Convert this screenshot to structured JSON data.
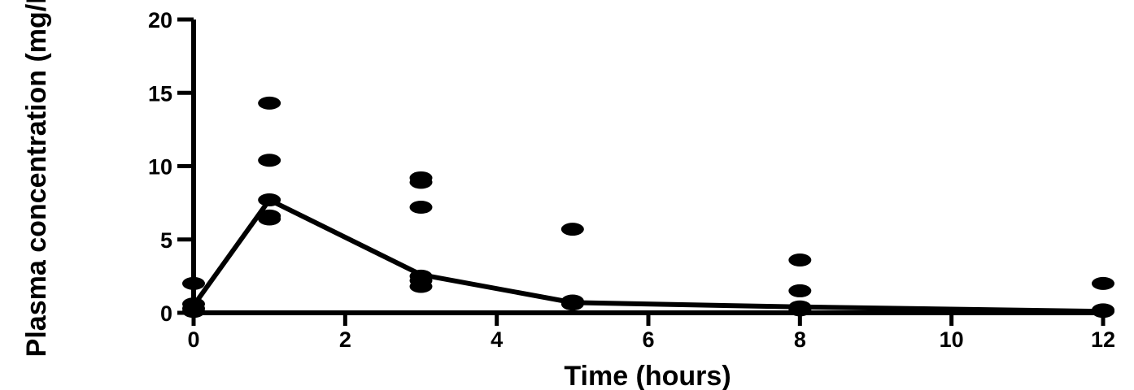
{
  "chart_data": {
    "type": "scatter",
    "title": "",
    "xlabel": "Time (hours)",
    "ylabel": "Plasma concentration (mg/L)",
    "xlim": [
      0,
      12
    ],
    "ylim": [
      0,
      20
    ],
    "xticks": [
      0,
      2,
      4,
      6,
      8,
      10,
      12
    ],
    "yticks": [
      0,
      5,
      10,
      15,
      20
    ],
    "grid": false,
    "series": [
      {
        "type": "scatter",
        "points": [
          [
            0,
            2.0
          ],
          [
            0,
            0.6
          ],
          [
            0,
            0.3
          ],
          [
            0,
            0.1
          ],
          [
            1,
            14.3
          ],
          [
            1,
            10.4
          ],
          [
            1,
            7.7
          ],
          [
            1,
            6.6
          ],
          [
            1,
            6.4
          ],
          [
            3,
            9.2
          ],
          [
            3,
            8.9
          ],
          [
            3,
            7.2
          ],
          [
            3,
            2.5
          ],
          [
            3,
            2.2
          ],
          [
            3,
            1.8
          ],
          [
            5,
            5.7
          ],
          [
            5,
            0.8
          ],
          [
            5,
            0.6
          ],
          [
            8,
            3.6
          ],
          [
            8,
            1.5
          ],
          [
            8,
            0.4
          ],
          [
            8,
            0.2
          ],
          [
            12,
            2.0
          ],
          [
            12,
            0.2
          ],
          [
            12,
            0.1
          ]
        ]
      },
      {
        "type": "line",
        "points": [
          [
            0,
            0.5
          ],
          [
            1,
            7.7
          ],
          [
            3,
            2.6
          ],
          [
            5,
            0.7
          ],
          [
            8,
            0.4
          ],
          [
            12,
            0.1
          ]
        ]
      }
    ]
  }
}
